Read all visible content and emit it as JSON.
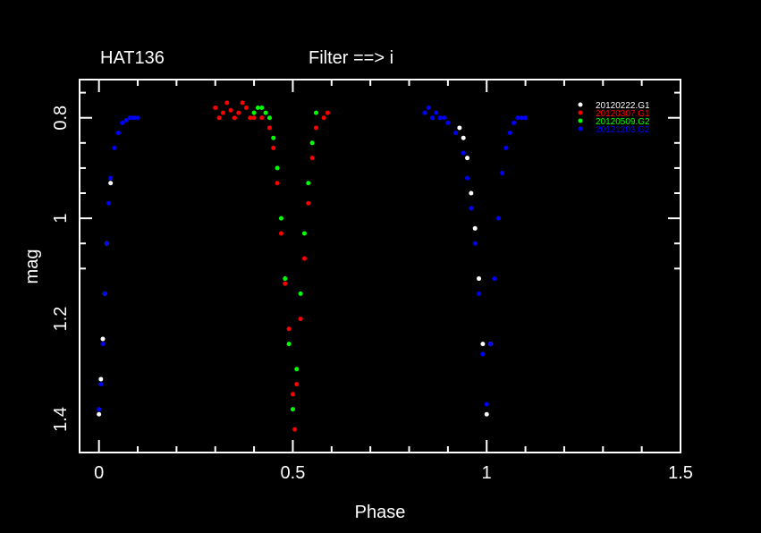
{
  "chart_data": {
    "type": "scatter",
    "title_left": "HAT136",
    "title_center": "Filter ==> i",
    "xlabel": "Phase",
    "ylabel": "mag",
    "xlim": [
      -0.05,
      1.5
    ],
    "ylim": [
      1.466,
      0.724
    ],
    "y_inverted": true,
    "xticks": [
      0,
      0.5,
      1,
      1.5
    ],
    "xtick_labels": [
      "0",
      "0.5",
      "1",
      "1.5"
    ],
    "yticks": [
      0.8,
      1,
      1.2,
      1.4
    ],
    "ytick_labels": [
      "0.8",
      "1",
      "1.2",
      "1.4"
    ],
    "legend_position": "top-right",
    "grid": false,
    "series": [
      {
        "name": "20120222.G1",
        "color": "#ffffff",
        "x": [
          0.0,
          0.005,
          0.01,
          0.015,
          0.02,
          0.03,
          0.93,
          0.94,
          0.95,
          0.96,
          0.97,
          0.98,
          0.99,
          1.0,
          1.01
        ],
        "y": [
          1.39,
          1.32,
          1.24,
          1.15,
          1.05,
          0.93,
          0.82,
          0.84,
          0.88,
          0.95,
          1.02,
          1.12,
          1.25,
          1.39,
          1.25
        ]
      },
      {
        "name": "20120307.G1",
        "color": "#ff0000",
        "x": [
          0.3,
          0.31,
          0.32,
          0.33,
          0.34,
          0.35,
          0.36,
          0.37,
          0.38,
          0.39,
          0.4,
          0.42,
          0.44,
          0.45,
          0.46,
          0.47,
          0.48,
          0.49,
          0.5,
          0.505,
          0.51,
          0.52,
          0.53,
          0.54,
          0.55,
          0.56,
          0.58,
          0.59
        ],
        "y": [
          0.78,
          0.8,
          0.79,
          0.77,
          0.785,
          0.8,
          0.79,
          0.77,
          0.78,
          0.8,
          0.8,
          0.8,
          0.82,
          0.86,
          0.93,
          1.03,
          1.13,
          1.22,
          1.35,
          1.42,
          1.33,
          1.2,
          1.08,
          0.97,
          0.88,
          0.82,
          0.8,
          0.79
        ]
      },
      {
        "name": "20120509.G2",
        "color": "#00ff00",
        "x": [
          0.4,
          0.41,
          0.42,
          0.43,
          0.44,
          0.45,
          0.46,
          0.47,
          0.48,
          0.49,
          0.5,
          0.51,
          0.52,
          0.53,
          0.54,
          0.55,
          0.56
        ],
        "y": [
          0.79,
          0.78,
          0.78,
          0.79,
          0.8,
          0.84,
          0.9,
          1.0,
          1.12,
          1.25,
          1.38,
          1.3,
          1.15,
          1.03,
          0.93,
          0.85,
          0.79
        ]
      },
      {
        "name": "20121203.G2",
        "color": "#0000ff",
        "x": [
          0.0,
          0.005,
          0.01,
          0.015,
          0.02,
          0.025,
          0.03,
          0.04,
          0.05,
          0.06,
          0.07,
          0.08,
          0.09,
          0.1,
          0.84,
          0.85,
          0.86,
          0.87,
          0.88,
          0.89,
          0.9,
          0.92,
          0.94,
          0.95,
          0.96,
          0.97,
          0.98,
          0.99,
          1.0,
          1.01,
          1.02,
          1.03,
          1.04,
          1.05,
          1.06,
          1.07,
          1.08,
          1.09,
          1.1
        ],
        "y": [
          1.38,
          1.33,
          1.25,
          1.15,
          1.05,
          0.97,
          0.92,
          0.86,
          0.83,
          0.81,
          0.805,
          0.8,
          0.8,
          0.8,
          0.79,
          0.78,
          0.8,
          0.79,
          0.8,
          0.8,
          0.81,
          0.83,
          0.87,
          0.92,
          0.98,
          1.05,
          1.15,
          1.27,
          1.37,
          1.25,
          1.12,
          1.0,
          0.91,
          0.86,
          0.83,
          0.81,
          0.8,
          0.8,
          0.8
        ]
      }
    ]
  }
}
